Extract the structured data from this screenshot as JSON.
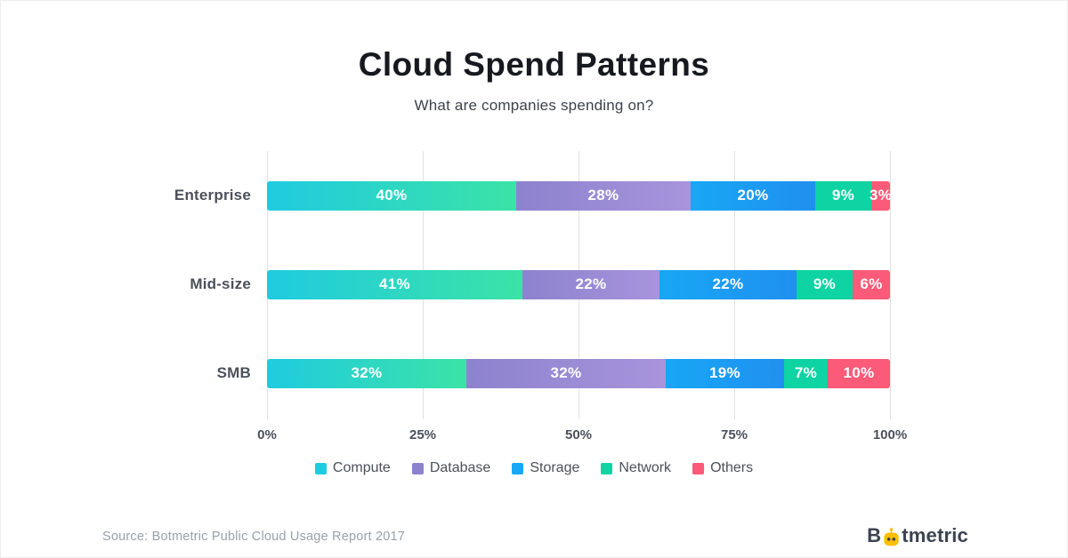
{
  "header": {
    "title": "Cloud Spend Patterns",
    "subtitle": "What are companies spending on?"
  },
  "chart_data": {
    "type": "bar",
    "orientation": "horizontal",
    "stacked": true,
    "categories": [
      "Enterprise",
      "Mid-size",
      "SMB"
    ],
    "series": [
      {
        "name": "Compute",
        "color": "#1fcbe0",
        "color2": "#3be3a6",
        "values": [
          40,
          41,
          32
        ]
      },
      {
        "name": "Database",
        "color": "#8d82ce",
        "color2": "#a794dc",
        "values": [
          28,
          22,
          32
        ]
      },
      {
        "name": "Storage",
        "color": "#17a7f5",
        "color2": "#2090f0",
        "values": [
          20,
          22,
          19
        ]
      },
      {
        "name": "Network",
        "color": "#0ed3a2",
        "values": [
          9,
          9,
          7
        ]
      },
      {
        "name": "Others",
        "color": "#fb5a78",
        "values": [
          3,
          6,
          10
        ]
      }
    ],
    "x_ticks": [
      "0%",
      "25%",
      "50%",
      "75%",
      "100%"
    ],
    "xlim": [
      0,
      100
    ],
    "grid": true,
    "legend_position": "bottom",
    "value_label_suffix": "%"
  },
  "footer": {
    "source": "Source: Botmetric Public Cloud Usage Report 2017",
    "brand": "Botmetric",
    "brand_prefix": "B",
    "brand_suffix": "tmetric",
    "brand_icon_color": "#ffbe00"
  }
}
